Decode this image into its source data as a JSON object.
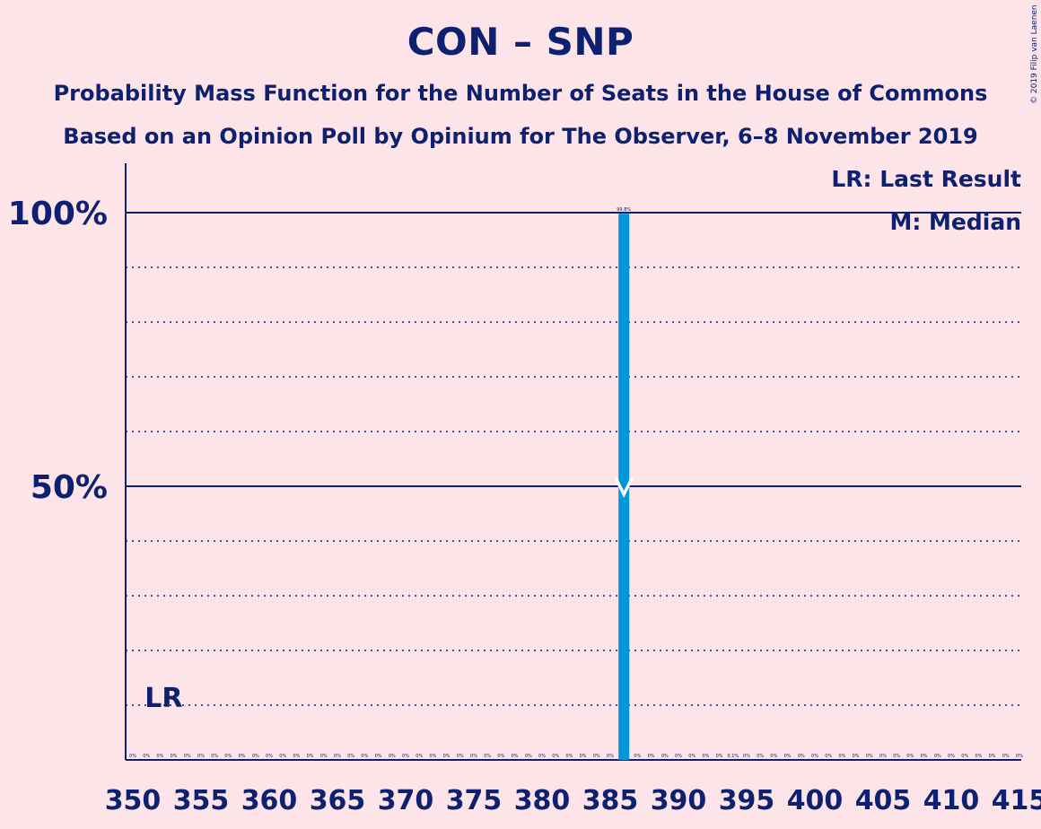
{
  "title": "CON – SNP",
  "subtitle_1": "Probability Mass Function for the Number of Seats in the House of Commons",
  "subtitle_2": "Based on an Opinion Poll by Opinium for The Observer, 6–8 November 2019",
  "copyright": "© 2019 Filip van Laenen",
  "legend": {
    "last_result": "LR: Last Result",
    "median": "M: Median"
  },
  "colors": {
    "background": "#fde4e8",
    "axis": "#0d2170",
    "bar": "#0096dc"
  },
  "chart_data": {
    "type": "bar",
    "x_min": 350,
    "x_max": 415,
    "x_tick_labels": [
      "350",
      "355",
      "360",
      "365",
      "370",
      "375",
      "380",
      "385",
      "390",
      "395",
      "400",
      "405",
      "410",
      "415"
    ],
    "y_tick_labels": [
      "50%",
      "100%"
    ],
    "ylim": [
      0,
      100
    ],
    "grid": true,
    "last_result_seat": 352,
    "last_result_label": "LR",
    "median_seat": 386,
    "median_label": "M",
    "bars": [
      {
        "x": 386,
        "value": 99.8,
        "label": "99.8%"
      }
    ],
    "small_labels": [
      {
        "x": 350,
        "label": "0%"
      },
      {
        "x": 351,
        "label": "0%"
      },
      {
        "x": 352,
        "label": "0%"
      },
      {
        "x": 353,
        "label": "0%"
      },
      {
        "x": 354,
        "label": "0%"
      },
      {
        "x": 355,
        "label": "0%"
      },
      {
        "x": 356,
        "label": "0%"
      },
      {
        "x": 357,
        "label": "0%"
      },
      {
        "x": 358,
        "label": "0%"
      },
      {
        "x": 359,
        "label": "0%"
      },
      {
        "x": 360,
        "label": "0%"
      },
      {
        "x": 361,
        "label": "0%"
      },
      {
        "x": 362,
        "label": "0%"
      },
      {
        "x": 363,
        "label": "0%"
      },
      {
        "x": 364,
        "label": "0%"
      },
      {
        "x": 365,
        "label": "0%"
      },
      {
        "x": 366,
        "label": "0%"
      },
      {
        "x": 367,
        "label": "0%"
      },
      {
        "x": 368,
        "label": "0%"
      },
      {
        "x": 369,
        "label": "0%"
      },
      {
        "x": 370,
        "label": "0%"
      },
      {
        "x": 371,
        "label": "0%"
      },
      {
        "x": 372,
        "label": "0%"
      },
      {
        "x": 373,
        "label": "0%"
      },
      {
        "x": 374,
        "label": "0%"
      },
      {
        "x": 375,
        "label": "0%"
      },
      {
        "x": 376,
        "label": "0%"
      },
      {
        "x": 377,
        "label": "0%"
      },
      {
        "x": 378,
        "label": "0%"
      },
      {
        "x": 379,
        "label": "0%"
      },
      {
        "x": 380,
        "label": "0%"
      },
      {
        "x": 381,
        "label": "0%"
      },
      {
        "x": 382,
        "label": "0%"
      },
      {
        "x": 383,
        "label": "0%"
      },
      {
        "x": 384,
        "label": "0%"
      },
      {
        "x": 385,
        "label": "0%"
      },
      {
        "x": 387,
        "label": "0%"
      },
      {
        "x": 388,
        "label": "0%"
      },
      {
        "x": 389,
        "label": "0%"
      },
      {
        "x": 390,
        "label": "0%"
      },
      {
        "x": 391,
        "label": "0%"
      },
      {
        "x": 392,
        "label": "0%"
      },
      {
        "x": 393,
        "label": "0%"
      },
      {
        "x": 394,
        "label": "0.1%"
      },
      {
        "x": 395,
        "label": "0%"
      },
      {
        "x": 396,
        "label": "0%"
      },
      {
        "x": 397,
        "label": "0%"
      },
      {
        "x": 398,
        "label": "0%"
      },
      {
        "x": 399,
        "label": "0%"
      },
      {
        "x": 400,
        "label": "0%"
      },
      {
        "x": 401,
        "label": "0%"
      },
      {
        "x": 402,
        "label": "0%"
      },
      {
        "x": 403,
        "label": "0%"
      },
      {
        "x": 404,
        "label": "0%"
      },
      {
        "x": 405,
        "label": "0%"
      },
      {
        "x": 406,
        "label": "0%"
      },
      {
        "x": 407,
        "label": "0%"
      },
      {
        "x": 408,
        "label": "0%"
      },
      {
        "x": 409,
        "label": "0%"
      },
      {
        "x": 410,
        "label": "0%"
      },
      {
        "x": 411,
        "label": "0%"
      },
      {
        "x": 412,
        "label": "0%"
      },
      {
        "x": 413,
        "label": "0%"
      },
      {
        "x": 414,
        "label": "0%"
      },
      {
        "x": 415,
        "label": "0%"
      }
    ]
  }
}
